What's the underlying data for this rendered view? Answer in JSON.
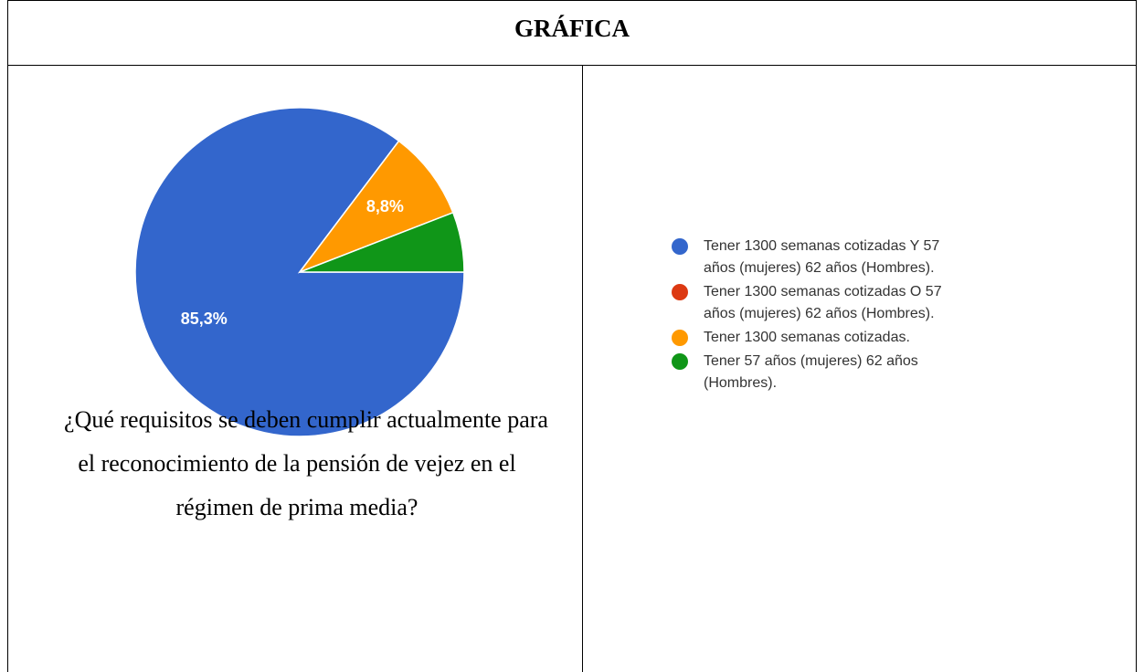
{
  "header": {
    "title": "GRÁFICA"
  },
  "question": "¿Qué requisitos se deben cumplir actualmente para el reconocimiento de la pensión de vejez en el régimen de prima media?",
  "chart_data": {
    "type": "pie",
    "categories": [
      "Tener 1300 semanas cotizadas Y 57 años (mujeres) 62 años (Hombres).",
      "Tener 1300 semanas cotizadas O 57 años (mujeres) 62 años (Hombres).",
      "Tener 1300 semanas cotizadas.",
      "Tener 57 años (mujeres) 62 años (Hombres)."
    ],
    "values": [
      85.3,
      0,
      8.8,
      5.9
    ],
    "value_labels": [
      "85,3%",
      null,
      "8,8%",
      null
    ],
    "colors": [
      "#3366cc",
      "#dc3912",
      "#ff9900",
      "#109618"
    ]
  }
}
